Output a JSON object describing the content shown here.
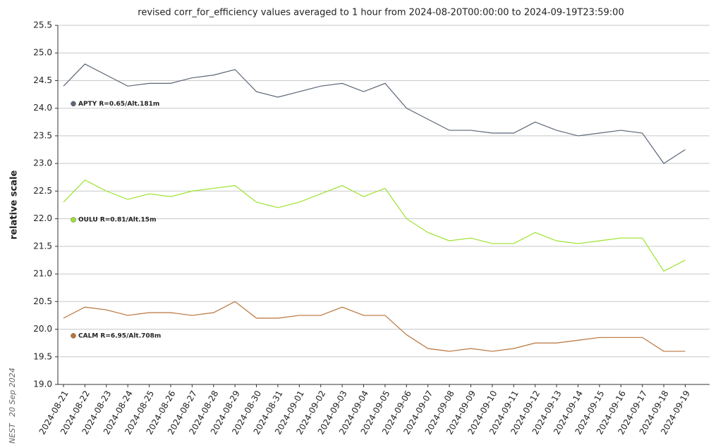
{
  "chart_data": {
    "type": "line",
    "title": "revised corr_for_efficiency values averaged to 1 hour from 2024-08-20T00:00:00 to 2024-09-19T23:59:00",
    "y_label": "relative scale",
    "footer_source": "NEST",
    "footer_date": "20 Sep 2024",
    "categories": [
      "2024-08-21",
      "2024-08-22",
      "2024-08-23",
      "2024-08-24",
      "2024-08-25",
      "2024-08-26",
      "2024-08-27",
      "2024-08-28",
      "2024-08-29",
      "2024-08-30",
      "2024-08-31",
      "2024-09-01",
      "2024-09-02",
      "2024-09-03",
      "2024-09-04",
      "2024-09-05",
      "2024-09-06",
      "2024-09-07",
      "2024-09-08",
      "2024-09-09",
      "2024-09-10",
      "2024-09-11",
      "2024-09-12",
      "2024-09-13",
      "2024-09-14",
      "2024-09-15",
      "2024-09-16",
      "2024-09-17",
      "2024-09-18",
      "2024-09-19"
    ],
    "series": [
      {
        "name": "APTY R=0.65/Alt.181m",
        "color": "#5b6676",
        "values": [
          24.4,
          24.8,
          24.6,
          24.4,
          24.45,
          24.45,
          24.55,
          24.6,
          24.7,
          24.3,
          24.2,
          24.3,
          24.4,
          24.45,
          24.3,
          24.45,
          24.0,
          23.8,
          23.6,
          23.6,
          23.55,
          23.55,
          23.75,
          23.6,
          23.5,
          23.55,
          23.6,
          23.55,
          23.0,
          23.25
        ]
      },
      {
        "name": "OULU R=0.81/Alt.15m",
        "color": "#9be22c",
        "values": [
          22.3,
          22.7,
          22.5,
          22.35,
          22.45,
          22.4,
          22.5,
          22.55,
          22.6,
          22.3,
          22.2,
          22.3,
          22.45,
          22.6,
          22.4,
          22.55,
          22.0,
          21.75,
          21.6,
          21.65,
          21.55,
          21.55,
          21.75,
          21.6,
          21.55,
          21.6,
          21.65,
          21.65,
          21.05,
          21.25
        ]
      },
      {
        "name": "CALM R=6.95/Alt.708m",
        "color": "#b8733a",
        "values": [
          20.2,
          20.4,
          20.35,
          20.25,
          20.3,
          20.3,
          20.25,
          20.3,
          20.5,
          20.2,
          20.2,
          20.25,
          20.25,
          20.4,
          20.25,
          20.25,
          19.9,
          19.65,
          19.6,
          19.65,
          19.6,
          19.65,
          19.75,
          19.75,
          19.8,
          19.85,
          19.85,
          19.85,
          19.6,
          19.6
        ]
      }
    ],
    "ylim": [
      19,
      25.5
    ],
    "yticks": [
      {
        "value": 19,
        "label": "19.0"
      },
      19.5,
      {
        "value": 20,
        "label": "20.0"
      },
      20.5,
      {
        "value": 21,
        "label": "21.0"
      },
      21.5,
      {
        "value": 22,
        "label": "22.0"
      },
      22.5,
      {
        "value": 23,
        "label": "23.0"
      },
      23.5,
      {
        "value": 24,
        "label": "24.0"
      },
      24.5,
      {
        "value": 25,
        "label": "25.0"
      },
      25.5
    ],
    "grid": true
  }
}
